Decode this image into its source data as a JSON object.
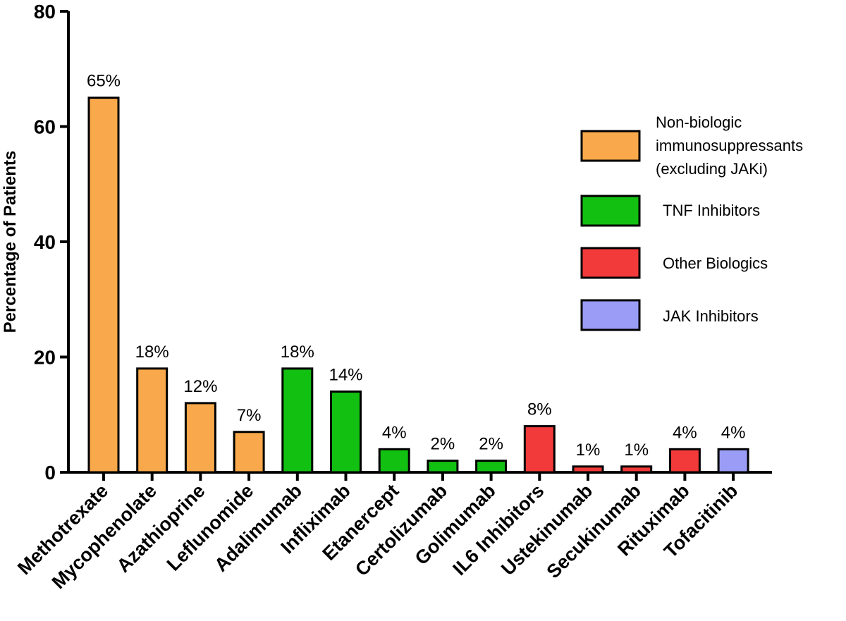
{
  "chart_data": {
    "type": "bar",
    "ylabel": "Percentage of Patients",
    "xlabel": "",
    "ylim": [
      0,
      80
    ],
    "yticks": [
      0,
      20,
      40,
      60,
      80
    ],
    "grid": false,
    "legend_position": "right",
    "categories": [
      "Methotrexate",
      "Mycophenolate",
      "Azathioprine",
      "Leflunomide",
      "Adalimumab",
      "Infliximab",
      "Etanercept",
      "Certolizumab",
      "Golimumab",
      "IL6 Inhibitors",
      "Ustekinumab",
      "Secukinumab",
      "Rituximab",
      "Tofacitinib"
    ],
    "values": [
      65,
      18,
      12,
      7,
      18,
      14,
      4,
      2,
      2,
      8,
      1,
      1,
      4,
      4
    ],
    "data_labels": [
      "65%",
      "18%",
      "12%",
      "7%",
      "18%",
      "14%",
      "4%",
      "2%",
      "2%",
      "8%",
      "1%",
      "1%",
      "4%",
      "4%"
    ],
    "groups": [
      0,
      0,
      0,
      0,
      1,
      1,
      1,
      1,
      1,
      2,
      2,
      2,
      2,
      3
    ],
    "legend": [
      {
        "name_lines": [
          "Non-biologic",
          "immunosuppressants",
          "(excluding JAKi)"
        ],
        "color": "#f9a94b"
      },
      {
        "name_lines": [
          "TNF Inhibitors"
        ],
        "color": "#12c012"
      },
      {
        "name_lines": [
          "Other Biologics"
        ],
        "color": "#f23a3a"
      },
      {
        "name_lines": [
          "JAK Inhibitors"
        ],
        "color": "#9a9cf5"
      }
    ]
  }
}
